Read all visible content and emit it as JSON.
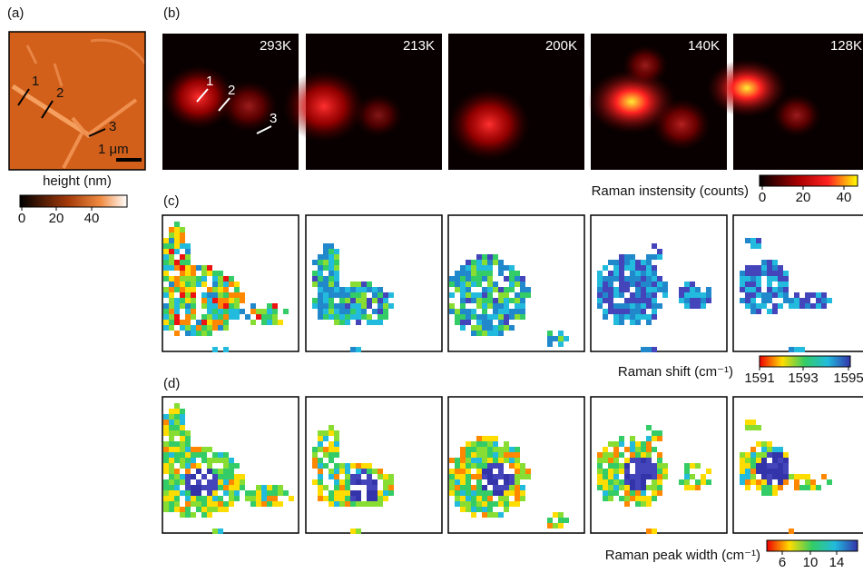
{
  "panels": {
    "a": {
      "label": "(a)",
      "annotations": [
        "1",
        "2",
        "3"
      ],
      "scale_bar": "1 μm",
      "colorbar": {
        "title": "height (nm)",
        "ticks": [
          "0",
          "20",
          "40"
        ]
      }
    },
    "b": {
      "label": "(b)",
      "temperatures": [
        "293K",
        "213K",
        "200K",
        "140K",
        "128K"
      ],
      "annotations": [
        "1",
        "2",
        "3"
      ],
      "colorbar": {
        "title": "Raman instensity (counts)",
        "ticks": [
          "0",
          "20",
          "40"
        ]
      }
    },
    "c": {
      "label": "(c)",
      "colorbar": {
        "title": "Raman shift (cm⁻¹)",
        "ticks": [
          "1591",
          "1593",
          "1595"
        ]
      }
    },
    "d": {
      "label": "(d)",
      "colorbar": {
        "title": "Raman peak width (cm⁻¹)",
        "ticks": [
          "6",
          "10",
          "14"
        ]
      }
    }
  }
}
